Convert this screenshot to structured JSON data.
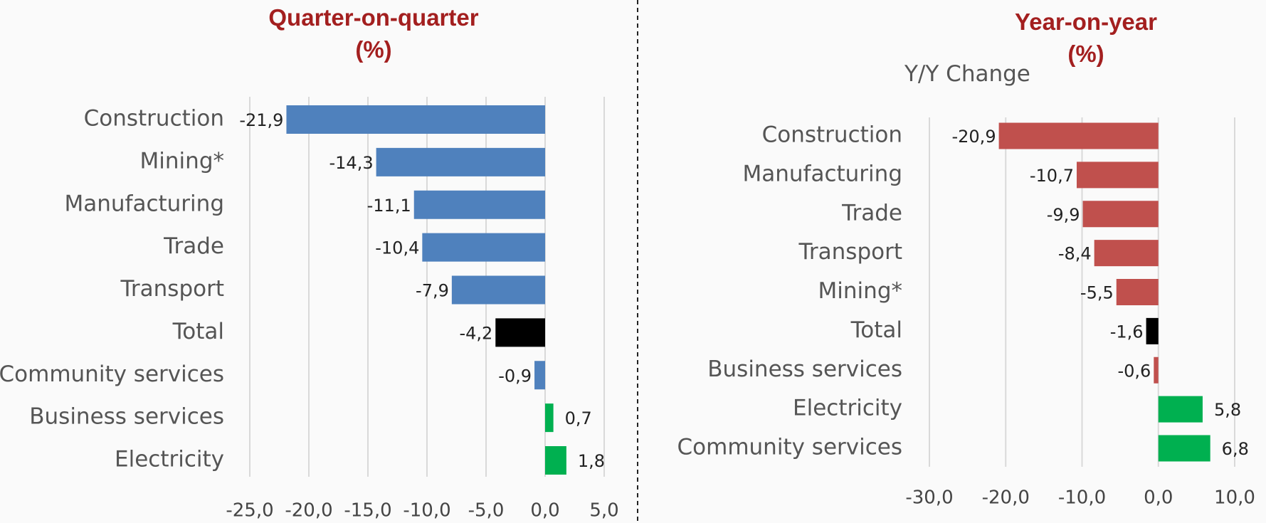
{
  "chart_data": [
    {
      "type": "barh",
      "title": "Quarter-on-quarter (%)",
      "categories": [
        "Construction",
        "Mining*",
        "Manufacturing",
        "Trade",
        "Transport",
        "Total",
        "Community services",
        "Business services",
        "Electricity"
      ],
      "values": [
        -21.9,
        -14.3,
        -11.1,
        -10.4,
        -7.9,
        -4.2,
        -0.9,
        0.7,
        1.8
      ],
      "value_labels": [
        "-21,9",
        "-14,3",
        "-11,1",
        "-10,4",
        "-7,9",
        "-4,2",
        "-0,9",
        "0,7",
        "1,8"
      ],
      "colors": [
        "#4f81bd",
        "#4f81bd",
        "#4f81bd",
        "#4f81bd",
        "#4f81bd",
        "#000000",
        "#4f81bd",
        "#00b050",
        "#00b050"
      ],
      "xlim": [
        -25,
        5
      ],
      "xticks": [
        {
          "value": -25,
          "label": "-25,0"
        },
        {
          "value": -20,
          "label": "-20,0"
        },
        {
          "value": -15,
          "label": "-15,0"
        },
        {
          "value": -10,
          "label": "-10,0"
        },
        {
          "value": -5,
          "label": "-5,0"
        },
        {
          "value": 0,
          "label": "0,0"
        },
        {
          "value": 5,
          "label": "5,0"
        }
      ],
      "grid": true
    },
    {
      "type": "barh",
      "title": "Year-on-year (%)",
      "subtitle": "Y/Y Change",
      "categories": [
        "Construction",
        "Manufacturing",
        "Trade",
        "Transport",
        "Mining*",
        "Total",
        "Business services",
        "Electricity",
        "Community services"
      ],
      "values": [
        -20.9,
        -10.7,
        -9.9,
        -8.4,
        -5.5,
        -1.6,
        -0.6,
        5.8,
        6.8
      ],
      "value_labels": [
        "-20,9",
        "-10,7",
        "-9,9",
        "-8,4",
        "-5,5",
        "-1,6",
        "-0,6",
        "5,8",
        "6,8"
      ],
      "colors": [
        "#c0504d",
        "#c0504d",
        "#c0504d",
        "#c0504d",
        "#c0504d",
        "#000000",
        "#c0504d",
        "#00b050",
        "#00b050"
      ],
      "xlim": [
        -30,
        10
      ],
      "xticks": [
        {
          "value": -30,
          "label": "-30,0"
        },
        {
          "value": -20,
          "label": "-20,0"
        },
        {
          "value": -10,
          "label": "-10,0"
        },
        {
          "value": 0,
          "label": "0,0"
        },
        {
          "value": 10,
          "label": "10,0"
        }
      ],
      "grid": true
    }
  ]
}
